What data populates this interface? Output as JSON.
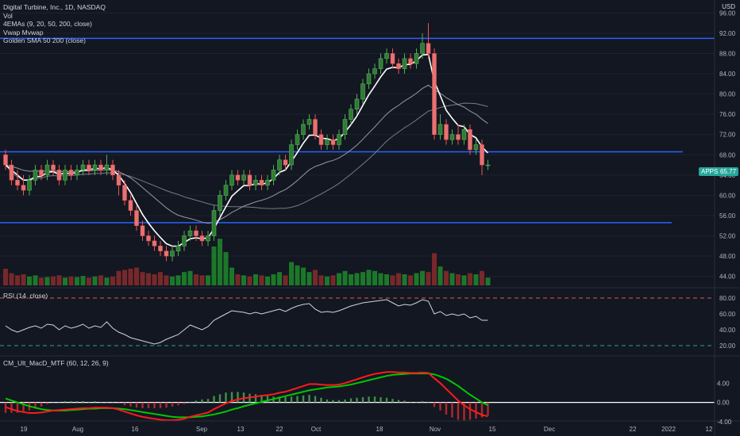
{
  "header": {
    "symbol_line": "Digital Turbine, Inc., 1D, NASDAQ",
    "vol_label": "Vol",
    "ema_label": "4EMAs (9, 20, 50, 200, close)",
    "vwap_label": "Vwap Mvwap",
    "sma_label": "Golden SMA 50 200 (close)",
    "currency": "USD"
  },
  "price_badge": {
    "symbol": "APPS",
    "value": "65.77",
    "color": "#26a69a"
  },
  "rsi_pane": {
    "label": "RSI (14, close)",
    "ticks": [
      "80.00",
      "60.00",
      "40.00",
      "20.00"
    ]
  },
  "macd_pane": {
    "label": "CM_Ult_MacD_MTF (60, 12, 26, 9)",
    "ticks": [
      "4.00",
      "0.00",
      "-4.00"
    ]
  },
  "price_axis": {
    "ticks": [
      "96.00",
      "92.00",
      "88.00",
      "84.00",
      "80.00",
      "76.00",
      "72.00",
      "68.00",
      "64.00",
      "60.00",
      "56.00",
      "52.00",
      "48.00",
      "44.00"
    ]
  },
  "time_axis": {
    "labels": [
      "19",
      "Aug",
      "16",
      "Sep",
      "13",
      "22",
      "Oct",
      "18",
      "Nov",
      "15",
      "Dec",
      "22",
      "2022",
      "12"
    ]
  },
  "colors": {
    "background": "#131722",
    "up": "#26a69a",
    "up_bar": "#1e8a2a",
    "down": "#ef5350",
    "hline": "#2962ff",
    "ema": "#ffffff",
    "rsi_line": "#d1d4dc",
    "macd_green": "#00c800",
    "macd_red": "#ff1a1a",
    "rsi_band_red": "#ef5350",
    "rsi_band_green": "#26a69a"
  },
  "levels": {
    "resistance_top": 91.0,
    "resistance_mid": 68.6,
    "support": 54.6
  },
  "candles": [
    [
      68,
      66,
      69,
      65
    ],
    [
      66,
      63,
      67,
      62
    ],
    [
      63,
      62,
      65,
      61
    ],
    [
      62,
      61,
      64,
      60
    ],
    [
      61,
      63,
      64,
      60
    ],
    [
      63,
      65,
      66,
      62
    ],
    [
      65,
      64,
      66,
      63
    ],
    [
      64,
      66,
      67,
      63
    ],
    [
      66,
      65,
      67,
      64
    ],
    [
      65,
      63,
      66,
      62
    ],
    [
      63,
      65,
      66,
      62
    ],
    [
      65,
      64,
      66,
      63
    ],
    [
      64,
      65,
      66,
      63
    ],
    [
      65,
      66,
      67,
      64
    ],
    [
      66,
      65,
      67,
      64
    ],
    [
      65,
      66,
      67,
      64
    ],
    [
      66,
      65,
      67,
      64
    ],
    [
      65,
      66,
      68,
      64
    ],
    [
      66,
      64,
      67,
      63
    ],
    [
      64,
      62,
      65,
      60
    ],
    [
      62,
      59,
      63,
      58
    ],
    [
      59,
      57,
      60,
      56
    ],
    [
      57,
      54,
      58,
      53
    ],
    [
      54,
      52,
      55,
      51
    ],
    [
      52,
      51,
      53,
      50
    ],
    [
      51,
      50,
      52,
      49
    ],
    [
      50,
      49,
      51,
      48
    ],
    [
      49,
      48,
      50,
      47
    ],
    [
      48,
      49,
      50,
      47
    ],
    [
      49,
      50,
      51,
      48
    ],
    [
      50,
      52,
      53,
      49
    ],
    [
      52,
      53,
      54,
      51
    ],
    [
      53,
      52,
      54,
      51
    ],
    [
      52,
      51,
      53,
      50
    ],
    [
      51,
      52,
      53,
      50
    ],
    [
      52,
      57,
      58,
      51
    ],
    [
      57,
      60,
      61,
      56
    ],
    [
      60,
      62,
      63,
      59
    ],
    [
      62,
      64,
      65,
      61
    ],
    [
      64,
      63,
      65,
      62
    ],
    [
      63,
      64,
      65,
      62
    ],
    [
      64,
      62,
      65,
      61
    ],
    [
      62,
      63,
      64,
      61
    ],
    [
      63,
      62,
      64,
      61
    ],
    [
      62,
      63,
      64,
      61
    ],
    [
      63,
      65,
      66,
      62
    ],
    [
      65,
      67,
      68,
      64
    ],
    [
      67,
      66,
      68,
      65
    ],
    [
      66,
      70,
      71,
      65
    ],
    [
      70,
      72,
      73,
      69
    ],
    [
      72,
      74,
      75,
      71
    ],
    [
      74,
      75,
      76,
      73
    ],
    [
      75,
      72,
      76,
      71
    ],
    [
      72,
      70,
      73,
      69
    ],
    [
      70,
      71,
      72,
      69
    ],
    [
      71,
      70,
      72,
      69
    ],
    [
      70,
      72,
      73,
      69
    ],
    [
      72,
      75,
      76,
      71
    ],
    [
      75,
      77,
      78,
      74
    ],
    [
      77,
      79,
      80,
      76
    ],
    [
      79,
      82,
      83,
      78
    ],
    [
      82,
      84,
      85,
      81
    ],
    [
      84,
      85,
      86,
      83
    ],
    [
      85,
      87,
      88,
      84
    ],
    [
      87,
      88,
      89,
      86
    ],
    [
      88,
      86,
      89,
      85
    ],
    [
      86,
      85,
      87,
      84
    ],
    [
      85,
      87,
      88,
      84
    ],
    [
      87,
      86,
      88,
      85
    ],
    [
      86,
      88,
      89,
      85
    ],
    [
      88,
      90,
      92,
      87
    ],
    [
      90,
      88,
      94,
      87
    ],
    [
      88,
      72,
      89,
      71
    ],
    [
      72,
      74,
      76,
      71
    ],
    [
      74,
      71,
      75,
      70
    ],
    [
      71,
      72,
      73,
      70
    ],
    [
      72,
      71,
      74,
      70
    ],
    [
      71,
      73,
      74,
      70
    ],
    [
      73,
      69,
      74,
      68
    ],
    [
      69,
      70,
      71,
      68
    ],
    [
      70,
      66,
      71,
      64
    ],
    [
      66,
      66,
      67,
      65
    ]
  ],
  "volumes": [
    30,
    22,
    18,
    20,
    16,
    18,
    14,
    15,
    16,
    18,
    14,
    16,
    15,
    17,
    14,
    16,
    18,
    14,
    16,
    26,
    28,
    30,
    32,
    24,
    22,
    20,
    24,
    18,
    16,
    18,
    24,
    26,
    20,
    18,
    18,
    70,
    84,
    60,
    32,
    20,
    18,
    16,
    20,
    18,
    16,
    20,
    24,
    18,
    42,
    36,
    32,
    24,
    28,
    18,
    16,
    18,
    22,
    26,
    20,
    22,
    24,
    28,
    26,
    22,
    20,
    18,
    22,
    20,
    18,
    22,
    26,
    24,
    58,
    34,
    26,
    22,
    20,
    18,
    22,
    20,
    26,
    14
  ],
  "rsi": [
    45,
    40,
    37,
    40,
    43,
    45,
    42,
    47,
    46,
    40,
    45,
    42,
    44,
    47,
    42,
    45,
    43,
    50,
    42,
    37,
    34,
    30,
    28,
    26,
    24,
    22,
    24,
    28,
    31,
    34,
    40,
    46,
    43,
    40,
    44,
    52,
    56,
    60,
    64,
    63,
    62,
    60,
    62,
    60,
    62,
    64,
    66,
    63,
    67,
    70,
    72,
    73,
    66,
    62,
    63,
    62,
    64,
    67,
    70,
    72,
    74,
    75,
    76,
    77,
    78,
    74,
    70,
    72,
    71,
    74,
    78,
    76,
    60,
    63,
    58,
    60,
    58,
    60,
    55,
    57,
    52,
    52
  ],
  "macd_line": [
    -1,
    -1.4,
    -1.8,
    -2.0,
    -2.2,
    -2.2,
    -2.1,
    -1.9,
    -1.7,
    -1.6,
    -1.5,
    -1.4,
    -1.3,
    -1.2,
    -1.2,
    -1.1,
    -1.1,
    -1.1,
    -1.2,
    -1.5,
    -1.9,
    -2.3,
    -2.7,
    -3.0,
    -3.2,
    -3.4,
    -3.6,
    -3.7,
    -3.7,
    -3.6,
    -3.4,
    -3.0,
    -2.7,
    -2.4,
    -2.1,
    -1.4,
    -0.8,
    -0.2,
    0.3,
    0.6,
    0.9,
    1.0,
    1.2,
    1.4,
    1.5,
    1.7,
    2.0,
    2.2,
    2.6,
    3.0,
    3.4,
    3.8,
    3.8,
    3.7,
    3.6,
    3.6,
    3.7,
    4.0,
    4.4,
    4.8,
    5.2,
    5.6,
    5.9,
    6.1,
    6.3,
    6.3,
    6.2,
    6.2,
    6.1,
    6.1,
    6.2,
    6.1,
    5.0,
    4.0,
    2.8,
    1.6,
    0.4,
    -0.6,
    -1.4,
    -2.0,
    -2.6,
    -2.9
  ],
  "macd_signal": [
    0.8,
    0.4,
    0,
    -0.4,
    -0.8,
    -1.1,
    -1.4,
    -1.6,
    -1.7,
    -1.7,
    -1.7,
    -1.6,
    -1.5,
    -1.4,
    -1.3,
    -1.3,
    -1.2,
    -1.2,
    -1.2,
    -1.3,
    -1.4,
    -1.6,
    -1.8,
    -2.0,
    -2.2,
    -2.4,
    -2.6,
    -2.8,
    -3.0,
    -3.1,
    -3.1,
    -3.1,
    -3.0,
    -2.9,
    -2.7,
    -2.5,
    -2.2,
    -1.9,
    -1.5,
    -1.2,
    -0.8,
    -0.5,
    -0.2,
    0.1,
    0.4,
    0.7,
    1.0,
    1.3,
    1.6,
    1.9,
    2.2,
    2.5,
    2.7,
    2.9,
    3.1,
    3.2,
    3.3,
    3.5,
    3.7,
    4.0,
    4.3,
    4.6,
    4.9,
    5.2,
    5.5,
    5.7,
    5.8,
    5.9,
    6.0,
    6.0,
    6.0,
    6.0,
    5.8,
    5.4,
    4.9,
    4.2,
    3.4,
    2.5,
    1.6,
    0.8,
    0.0,
    -0.6
  ]
}
